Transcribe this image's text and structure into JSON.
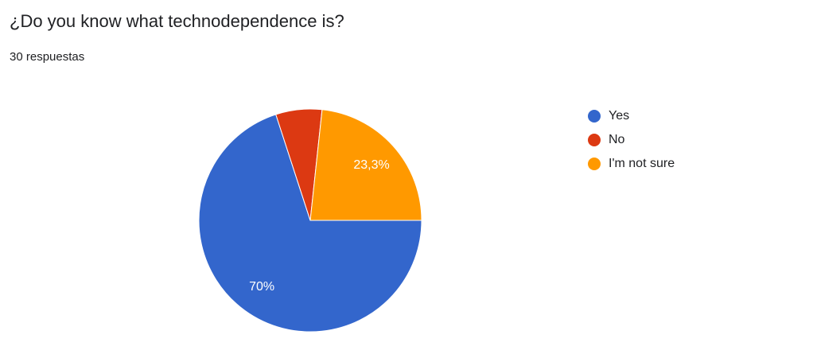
{
  "chart_data": {
    "type": "pie",
    "title": "¿Do you know what technodependence is?",
    "subtitle": "30 respuestas",
    "categories": [
      "Yes",
      "No",
      "I'm not sure"
    ],
    "values": [
      70,
      6.7,
      23.3
    ],
    "value_labels": [
      "70%",
      null,
      "23,3%"
    ],
    "colors": [
      "#3366cc",
      "#dc3912",
      "#ff9900"
    ]
  }
}
